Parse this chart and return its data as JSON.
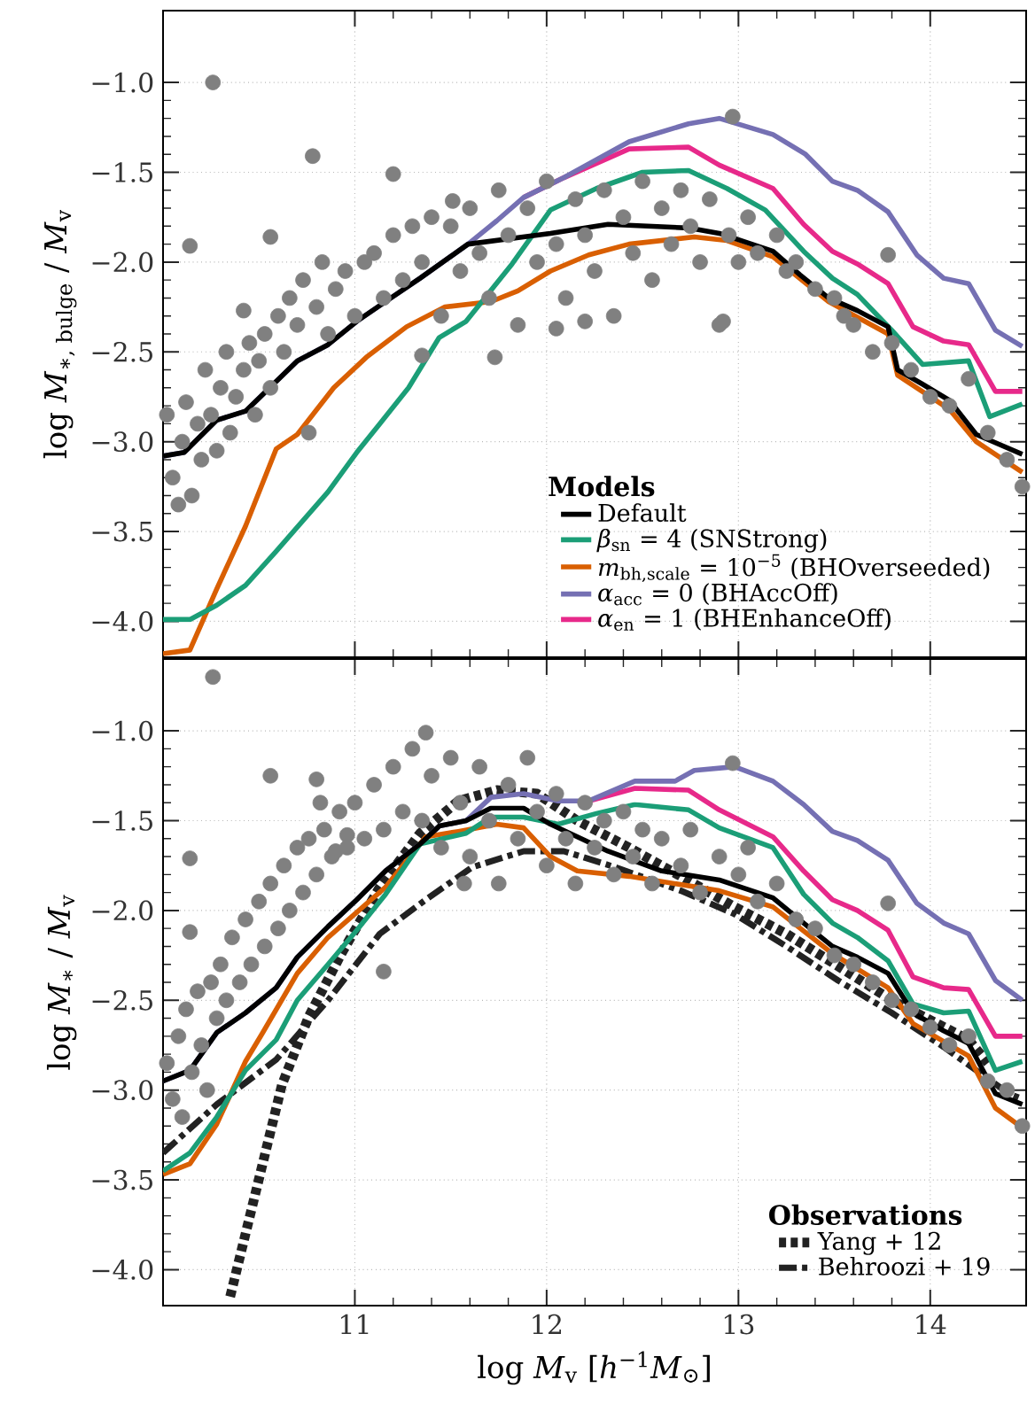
{
  "chart_data": [
    {
      "type": "line",
      "ylabel": "log *M*$_{∗, bulge}$ / *M*$_{v}$",
      "legend_title": "Models",
      "legend": "bottom right",
      "grid": true,
      "tick_labels": "y",
      "xlim": [
        10.0,
        14.5
      ],
      "ylim": [
        -4.2,
        -0.6
      ],
      "xticks": [
        11,
        12,
        13,
        14
      ],
      "yticks": [
        {
          "value": -4.0,
          "label": "−4.0"
        },
        {
          "value": -3.5,
          "label": "−3.5"
        },
        {
          "value": -3.0,
          "label": "−3.0"
        },
        {
          "value": -2.5,
          "label": "−2.5"
        },
        {
          "value": -2.0,
          "label": "−2.0"
        },
        {
          "value": -1.5,
          "label": "−1.5"
        },
        {
          "value": -1.0,
          "label": "−1.0"
        }
      ],
      "series": [
        {
          "type": "scatter",
          "marker": "circle",
          "color": "#808080",
          "x": [
            10.26,
            10.78,
            11.2,
            10.14,
            10.56,
            11.51,
            12.97,
            13.78,
            10.42,
            11.73,
            12.92,
            12.2,
            12.05,
            11.35,
            10.02,
            10.05,
            10.08,
            10.1,
            10.12,
            10.15,
            10.18,
            10.2,
            10.22,
            10.25,
            10.28,
            10.3,
            10.33,
            10.35,
            10.38,
            10.42,
            10.45,
            10.48,
            10.5,
            10.53,
            10.56,
            10.6,
            10.63,
            10.66,
            10.7,
            10.73,
            10.76,
            10.8,
            10.83,
            10.86,
            10.9,
            10.95,
            11.0,
            11.05,
            11.1,
            11.15,
            11.2,
            11.25,
            11.3,
            11.35,
            11.4,
            11.45,
            11.5,
            11.55,
            11.6,
            11.65,
            11.7,
            11.75,
            11.8,
            11.85,
            11.9,
            11.95,
            12.0,
            12.05,
            12.1,
            12.15,
            12.2,
            12.25,
            12.3,
            12.35,
            12.4,
            12.45,
            12.5,
            12.55,
            12.6,
            12.65,
            12.7,
            12.75,
            12.8,
            12.85,
            12.9,
            12.95,
            13.0,
            13.05,
            13.1,
            13.2,
            13.25,
            13.3,
            13.4,
            13.5,
            13.55,
            13.6,
            13.7,
            13.8,
            13.9,
            14.0,
            14.1,
            14.2,
            14.3,
            14.4,
            14.48
          ],
          "values": [
            -1.0,
            -1.41,
            -1.51,
            -1.91,
            -1.86,
            -1.66,
            -1.19,
            -1.96,
            -2.27,
            -2.53,
            -2.33,
            -2.33,
            -2.37,
            -2.52,
            -2.85,
            -3.2,
            -3.35,
            -3.0,
            -2.78,
            -3.3,
            -2.9,
            -3.1,
            -2.6,
            -2.85,
            -3.05,
            -2.7,
            -2.5,
            -2.95,
            -2.75,
            -2.6,
            -2.45,
            -2.85,
            -2.55,
            -2.4,
            -2.7,
            -2.3,
            -2.5,
            -2.2,
            -2.35,
            -2.1,
            -2.95,
            -2.25,
            -2.0,
            -2.4,
            -2.15,
            -2.05,
            -2.3,
            -2.0,
            -1.95,
            -2.2,
            -1.85,
            -2.1,
            -1.8,
            -2.0,
            -1.75,
            -2.3,
            -1.8,
            -2.05,
            -1.7,
            -1.95,
            -2.2,
            -1.6,
            -1.85,
            -2.35,
            -1.7,
            -2.0,
            -1.55,
            -1.9,
            -2.2,
            -1.65,
            -1.85,
            -2.05,
            -1.6,
            -2.3,
            -1.75,
            -1.95,
            -1.55,
            -2.1,
            -1.7,
            -1.9,
            -1.6,
            -1.8,
            -2.0,
            -1.65,
            -2.35,
            -1.85,
            -2.0,
            -1.75,
            -1.95,
            -1.85,
            -2.05,
            -2.0,
            -2.15,
            -2.2,
            -2.3,
            -2.35,
            -2.5,
            -2.45,
            -2.6,
            -2.75,
            -2.8,
            -2.65,
            -2.95,
            -3.1,
            -3.25
          ]
        },
        {
          "name": "Default",
          "color": "#000000",
          "x": [
            10.0,
            10.11,
            10.28,
            10.43,
            10.7,
            10.86,
            11.01,
            11.16,
            11.34,
            11.59,
            12.02,
            12.32,
            12.74,
            12.9,
            13.18,
            13.32,
            13.47,
            13.62,
            13.78,
            13.83,
            13.96,
            14.1,
            14.24,
            14.48
          ],
          "values": [
            -3.08,
            -3.06,
            -2.88,
            -2.83,
            -2.55,
            -2.46,
            -2.33,
            -2.22,
            -2.09,
            -1.9,
            -1.84,
            -1.79,
            -1.81,
            -1.84,
            -1.94,
            -2.07,
            -2.2,
            -2.27,
            -2.36,
            -2.6,
            -2.68,
            -2.77,
            -2.96,
            -3.07
          ]
        },
        {
          "name": "*β*$_{sn}$ = 4 (SNStrong)",
          "color": "#1b9e77",
          "x": [
            10.0,
            10.14,
            10.28,
            10.43,
            10.59,
            10.86,
            11.01,
            11.13,
            11.28,
            11.44,
            11.58,
            11.82,
            12.02,
            12.26,
            12.5,
            12.74,
            12.94,
            13.14,
            13.34,
            13.49,
            13.62,
            13.8,
            13.96,
            14.2,
            14.31,
            14.48
          ],
          "values": [
            -3.99,
            -3.99,
            -3.91,
            -3.8,
            -3.61,
            -3.28,
            -3.06,
            -2.9,
            -2.7,
            -2.42,
            -2.33,
            -2.01,
            -1.71,
            -1.59,
            -1.5,
            -1.49,
            -1.59,
            -1.71,
            -1.94,
            -2.09,
            -2.18,
            -2.38,
            -2.57,
            -2.55,
            -2.86,
            -2.79
          ]
        },
        {
          "name": "*m*$_{bh,scale}$ = 10$^{−5}$ (BHOverseeded)",
          "color": "#d95f02",
          "x": [
            10.0,
            10.14,
            10.28,
            10.43,
            10.59,
            10.7,
            10.89,
            11.06,
            11.27,
            11.47,
            11.71,
            11.85,
            12.02,
            12.22,
            12.43,
            12.77,
            12.94,
            13.18,
            13.47,
            13.78,
            13.83,
            14.1,
            14.24,
            14.48
          ],
          "values": [
            -4.18,
            -4.16,
            -3.82,
            -3.47,
            -3.04,
            -2.96,
            -2.7,
            -2.53,
            -2.36,
            -2.25,
            -2.22,
            -2.16,
            -2.05,
            -1.96,
            -1.9,
            -1.86,
            -1.88,
            -1.97,
            -2.22,
            -2.4,
            -2.63,
            -2.82,
            -3.0,
            -3.17
          ]
        },
        {
          "name": "*α*$_{acc}$ = 0 (BHAccOff)",
          "color": "#7570b3",
          "x": [
            10.0,
            10.11,
            10.28,
            10.43,
            10.7,
            10.86,
            11.01,
            11.16,
            11.34,
            11.59,
            11.74,
            11.88,
            12.09,
            12.43,
            12.74,
            12.9,
            13.18,
            13.35,
            13.49,
            13.62,
            13.78,
            13.93,
            14.07,
            14.2,
            14.34,
            14.48
          ],
          "values": [
            -3.08,
            -3.06,
            -2.88,
            -2.83,
            -2.55,
            -2.46,
            -2.33,
            -2.22,
            -2.09,
            -1.9,
            -1.77,
            -1.64,
            -1.53,
            -1.33,
            -1.23,
            -1.2,
            -1.29,
            -1.4,
            -1.55,
            -1.6,
            -1.72,
            -1.96,
            -2.09,
            -2.12,
            -2.38,
            -2.47
          ]
        },
        {
          "name": "*α*$_{en}$ = 1 (BHEnhanceOff)",
          "color": "#e7298a",
          "x": [
            11.88,
            12.09,
            12.43,
            12.74,
            12.9,
            13.18,
            13.34,
            13.49,
            13.62,
            13.78,
            13.91,
            14.07,
            14.2,
            14.34,
            14.48
          ],
          "values": [
            -1.64,
            -1.53,
            -1.37,
            -1.36,
            -1.46,
            -1.59,
            -1.79,
            -1.94,
            -2.01,
            -2.12,
            -2.36,
            -2.44,
            -2.46,
            -2.72,
            -2.72
          ]
        }
      ]
    },
    {
      "type": "line",
      "xlabel": "log *M*$_{v}$ [*h*$^{−1}$*M*$_{⊙}$]",
      "ylabel": "log *M*$_{∗}$ / *M*$_{v}$",
      "legend_title": "Observations",
      "legend": "bottom right",
      "grid": true,
      "xlim": [
        10.0,
        14.5
      ],
      "ylim": [
        -4.2,
        -0.6
      ],
      "xticks": [
        11,
        12,
        13,
        14
      ],
      "yticks": [
        {
          "value": -4.0,
          "label": "−4.0"
        },
        {
          "value": -3.5,
          "label": "−3.5"
        },
        {
          "value": -3.0,
          "label": "−3.0"
        },
        {
          "value": -2.5,
          "label": "−2.5"
        },
        {
          "value": -2.0,
          "label": "−2.0"
        },
        {
          "value": -1.5,
          "label": "−1.5"
        },
        {
          "value": -1.0,
          "label": "−1.0"
        }
      ],
      "series": [
        {
          "type": "scatter",
          "marker": "circle",
          "color": "#808080",
          "x": [
            10.26,
            10.14,
            10.14,
            10.56,
            10.8,
            10.82,
            10.9,
            10.96,
            11.37,
            12.97,
            13.78,
            11.57,
            11.15,
            10.02,
            10.05,
            10.08,
            10.1,
            10.12,
            10.15,
            10.18,
            10.2,
            10.23,
            10.25,
            10.28,
            10.3,
            10.33,
            10.36,
            10.4,
            10.43,
            10.46,
            10.5,
            10.53,
            10.56,
            10.6,
            10.63,
            10.66,
            10.7,
            10.73,
            10.76,
            10.8,
            10.84,
            10.88,
            10.92,
            10.96,
            11.0,
            11.05,
            11.1,
            11.15,
            11.2,
            11.25,
            11.3,
            11.35,
            11.4,
            11.45,
            11.5,
            11.55,
            11.6,
            11.65,
            11.7,
            11.75,
            11.8,
            11.85,
            11.9,
            11.95,
            12.0,
            12.05,
            12.1,
            12.15,
            12.2,
            12.25,
            12.3,
            12.35,
            12.4,
            12.45,
            12.5,
            12.55,
            12.6,
            12.7,
            12.75,
            12.8,
            12.9,
            13.0,
            13.05,
            13.1,
            13.2,
            13.3,
            13.4,
            13.5,
            13.6,
            13.7,
            13.8,
            13.9,
            14.0,
            14.1,
            14.2,
            14.3,
            14.4,
            14.48
          ],
          "values": [
            -0.7,
            -1.71,
            -2.12,
            -1.25,
            -1.27,
            -1.4,
            -1.67,
            -1.58,
            -1.01,
            -1.18,
            -1.96,
            -1.85,
            -2.34,
            -2.85,
            -3.05,
            -2.7,
            -3.15,
            -2.55,
            -2.9,
            -2.45,
            -2.75,
            -3.0,
            -2.4,
            -2.6,
            -2.3,
            -2.5,
            -2.15,
            -2.4,
            -2.05,
            -2.3,
            -1.95,
            -2.2,
            -1.85,
            -2.1,
            -1.75,
            -2.0,
            -1.65,
            -1.9,
            -1.6,
            -1.8,
            -1.55,
            -1.7,
            -1.45,
            -1.65,
            -1.4,
            -1.6,
            -1.3,
            -1.55,
            -1.2,
            -1.45,
            -1.1,
            -1.5,
            -1.25,
            -1.65,
            -1.15,
            -1.4,
            -1.7,
            -1.2,
            -1.5,
            -1.85,
            -1.3,
            -1.6,
            -1.15,
            -1.45,
            -1.75,
            -1.35,
            -1.6,
            -1.85,
            -1.4,
            -1.65,
            -1.5,
            -1.8,
            -1.45,
            -1.7,
            -1.55,
            -1.85,
            -1.6,
            -1.75,
            -1.55,
            -1.9,
            -1.7,
            -1.8,
            -1.65,
            -1.95,
            -1.85,
            -2.05,
            -2.1,
            -2.25,
            -2.3,
            -2.4,
            -2.5,
            -2.55,
            -2.65,
            -2.75,
            -2.7,
            -2.95,
            -3.0,
            -3.2
          ]
        },
        {
          "color": "#000000",
          "x": [
            10.0,
            10.14,
            10.28,
            10.43,
            10.59,
            10.7,
            10.86,
            11.01,
            11.16,
            11.34,
            11.44,
            11.58,
            11.71,
            11.88,
            12.02,
            12.16,
            12.32,
            12.6,
            12.9,
            13.18,
            13.34,
            13.49,
            13.62,
            13.78,
            13.91,
            14.07,
            14.2,
            14.34,
            14.48
          ],
          "values": [
            -2.95,
            -2.89,
            -2.68,
            -2.57,
            -2.43,
            -2.26,
            -2.09,
            -1.94,
            -1.78,
            -1.63,
            -1.53,
            -1.5,
            -1.43,
            -1.43,
            -1.52,
            -1.59,
            -1.67,
            -1.78,
            -1.83,
            -1.93,
            -2.07,
            -2.2,
            -2.26,
            -2.35,
            -2.57,
            -2.67,
            -2.74,
            -3.02,
            -3.08
          ]
        },
        {
          "color": "#1b9e77",
          "x": [
            10.0,
            10.14,
            10.28,
            10.43,
            10.59,
            10.7,
            10.86,
            11.01,
            11.16,
            11.34,
            11.58,
            11.71,
            11.88,
            12.06,
            12.26,
            12.46,
            12.74,
            12.9,
            13.18,
            13.34,
            13.49,
            13.62,
            13.78,
            13.91,
            14.07,
            14.2,
            14.34,
            14.48
          ],
          "values": [
            -3.45,
            -3.35,
            -3.15,
            -2.89,
            -2.72,
            -2.5,
            -2.3,
            -2.11,
            -1.91,
            -1.63,
            -1.57,
            -1.48,
            -1.48,
            -1.52,
            -1.46,
            -1.41,
            -1.44,
            -1.54,
            -1.65,
            -1.91,
            -2.07,
            -2.15,
            -2.28,
            -2.52,
            -2.57,
            -2.56,
            -2.89,
            -2.84
          ]
        },
        {
          "color": "#d95f02",
          "x": [
            10.0,
            10.14,
            10.28,
            10.43,
            10.52,
            10.7,
            10.86,
            11.16,
            11.37,
            11.54,
            11.74,
            11.88,
            12.02,
            12.16,
            12.43,
            12.9,
            13.18,
            13.49,
            13.78,
            13.91,
            14.2,
            14.34,
            14.48
          ],
          "values": [
            -3.47,
            -3.41,
            -3.19,
            -2.84,
            -2.68,
            -2.35,
            -2.15,
            -1.87,
            -1.59,
            -1.56,
            -1.52,
            -1.54,
            -1.7,
            -1.78,
            -1.81,
            -1.89,
            -1.98,
            -2.24,
            -2.43,
            -2.63,
            -2.81,
            -3.1,
            -3.21
          ]
        },
        {
          "color": "#7570b3",
          "x": [
            10.0,
            10.14,
            10.28,
            10.43,
            10.59,
            10.7,
            10.86,
            11.01,
            11.16,
            11.34,
            11.44,
            11.58,
            11.71,
            11.88,
            12.06,
            12.22,
            12.46,
            12.67,
            12.77,
            12.98,
            13.18,
            13.34,
            13.49,
            13.62,
            13.78,
            13.93,
            14.07,
            14.2,
            14.34,
            14.48
          ],
          "values": [
            -2.95,
            -2.89,
            -2.68,
            -2.57,
            -2.43,
            -2.26,
            -2.09,
            -1.94,
            -1.78,
            -1.63,
            -1.53,
            -1.5,
            -1.37,
            -1.35,
            -1.39,
            -1.39,
            -1.28,
            -1.28,
            -1.22,
            -1.2,
            -1.28,
            -1.41,
            -1.56,
            -1.61,
            -1.72,
            -1.96,
            -2.07,
            -2.13,
            -2.39,
            -2.5
          ]
        },
        {
          "color": "#e7298a",
          "x": [
            12.22,
            12.46,
            12.74,
            12.9,
            13.18,
            13.34,
            13.49,
            13.62,
            13.78,
            13.91,
            14.07,
            14.2,
            14.34,
            14.48
          ],
          "values": [
            -1.39,
            -1.32,
            -1.33,
            -1.44,
            -1.59,
            -1.78,
            -1.94,
            -2.0,
            -2.11,
            -2.37,
            -2.43,
            -2.44,
            -2.7,
            -2.7
          ]
        },
        {
          "name": "Yang + 12",
          "color": "#222222",
          "line_style": "dotted",
          "x": [
            10.35,
            10.62,
            10.76,
            10.93,
            11.13,
            11.34,
            11.54,
            11.74,
            11.95,
            12.16,
            12.43,
            12.7,
            12.98,
            13.25,
            13.52,
            13.8,
            14.0,
            14.2,
            14.3
          ],
          "values": [
            -4.15,
            -2.97,
            -2.59,
            -2.24,
            -1.87,
            -1.57,
            -1.39,
            -1.33,
            -1.35,
            -1.5,
            -1.65,
            -1.81,
            -1.98,
            -2.13,
            -2.31,
            -2.5,
            -2.61,
            -2.72,
            -2.85
          ]
        },
        {
          "name": "Behroozi + 19",
          "color": "#222222",
          "line_style": "dashdot",
          "x": [
            10.0,
            10.28,
            10.59,
            10.86,
            11.13,
            11.37,
            11.61,
            11.88,
            12.09,
            12.36,
            12.7,
            12.98,
            13.25,
            13.52,
            13.8,
            14.07,
            14.41,
            14.48
          ],
          "values": [
            -3.35,
            -3.08,
            -2.83,
            -2.5,
            -2.13,
            -1.94,
            -1.76,
            -1.67,
            -1.67,
            -1.76,
            -1.89,
            -2.02,
            -2.2,
            -2.39,
            -2.57,
            -2.76,
            -3.02,
            -3.05
          ]
        }
      ]
    }
  ]
}
